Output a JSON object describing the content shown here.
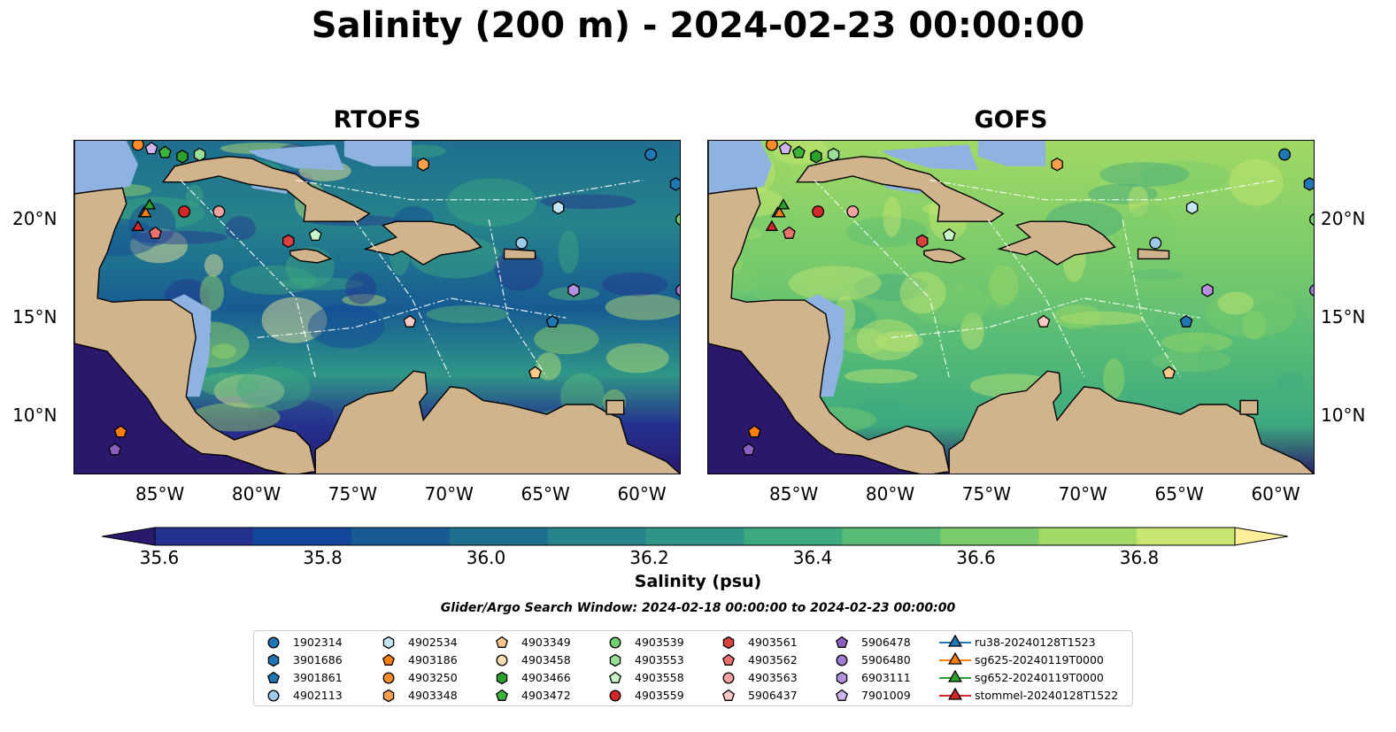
{
  "title": "Salinity (200 m) - 2024-02-23 00:00:00",
  "panels": [
    {
      "title": "RTOFS",
      "model": "rtofs"
    },
    {
      "title": "GOFS",
      "model": "gofs"
    }
  ],
  "map": {
    "lon_range": [
      -89.5,
      -58.0
    ],
    "lat_range": [
      7.0,
      24.0
    ],
    "x_ticks": [
      "85°W",
      "80°W",
      "75°W",
      "70°W",
      "65°W",
      "60°W"
    ],
    "x_tick_values": [
      -85,
      -80,
      -75,
      -70,
      -65,
      -60
    ],
    "y_ticks": [
      "20°N",
      "15°N",
      "10°N"
    ],
    "y_tick_values": [
      20,
      15,
      10
    ],
    "colors": {
      "land": "#d2b48c",
      "shelf": "#8fb3e0"
    }
  },
  "colorbar": {
    "label": "Salinity (psu)",
    "ticks": [
      "35.6",
      "35.8",
      "36.0",
      "36.2",
      "36.4",
      "36.6",
      "36.8"
    ],
    "tick_values": [
      35.6,
      35.8,
      36.0,
      36.2,
      36.4,
      36.6,
      36.8
    ],
    "range": [
      35.6,
      36.9
    ],
    "extend": "both",
    "colors": [
      "#2a186c",
      "#25318f",
      "#12469a",
      "#165b93",
      "#1e6f8e",
      "#26838b",
      "#2f9687",
      "#3da97f",
      "#58bc76",
      "#7acb6b",
      "#a0d964",
      "#c7e672",
      "#fdef9a"
    ]
  },
  "search_window": "Glider/Argo Search Window: 2024-02-18 00:00:00 to 2024-02-23 00:00:00",
  "legend": {
    "items": [
      {
        "label": "1902314",
        "marker": "circle",
        "color": "#1f77b4"
      },
      {
        "label": "3901686",
        "marker": "hexagon",
        "color": "#1f77b4"
      },
      {
        "label": "3901861",
        "marker": "pentagon",
        "color": "#1f77b4"
      },
      {
        "label": "4902113",
        "marker": "circle",
        "color": "#9ecae9"
      },
      {
        "label": "4902534",
        "marker": "hexagon",
        "color": "#c6e6f5"
      },
      {
        "label": "4903186",
        "marker": "pentagon",
        "color": "#ff7f0e"
      },
      {
        "label": "4903250",
        "marker": "circle",
        "color": "#ff8c29"
      },
      {
        "label": "4903348",
        "marker": "hexagon",
        "color": "#ff9f4a"
      },
      {
        "label": "4903349",
        "marker": "pentagon",
        "color": "#ffc88a"
      },
      {
        "label": "4903458",
        "marker": "circle",
        "color": "#ffdcb4"
      },
      {
        "label": "4903466",
        "marker": "hexagon",
        "color": "#2ca02c"
      },
      {
        "label": "4903472",
        "marker": "pentagon",
        "color": "#3cb43c"
      },
      {
        "label": "4903539",
        "marker": "circle",
        "color": "#6fcf6f"
      },
      {
        "label": "4903553",
        "marker": "hexagon",
        "color": "#98e098"
      },
      {
        "label": "4903558",
        "marker": "pentagon",
        "color": "#c8f5c8"
      },
      {
        "label": "4903559",
        "marker": "circle",
        "color": "#d62728"
      },
      {
        "label": "4903561",
        "marker": "hexagon",
        "color": "#d9413f"
      },
      {
        "label": "4903562",
        "marker": "pentagon",
        "color": "#e8706e"
      },
      {
        "label": "4903563",
        "marker": "circle",
        "color": "#f4a29f"
      },
      {
        "label": "5906437",
        "marker": "pentagon",
        "color": "#fbc8c4"
      },
      {
        "label": "5906478",
        "marker": "pentagon",
        "color": "#8c5fbf"
      },
      {
        "label": "5906480",
        "marker": "circle",
        "color": "#a07ad4"
      },
      {
        "label": "6903111",
        "marker": "hexagon",
        "color": "#b591df"
      },
      {
        "label": "7901009",
        "marker": "pentagon",
        "color": "#cdb5ee"
      },
      {
        "label": "ru38-20240128T1523",
        "marker": "triangle-line",
        "color": "#1f77b4"
      },
      {
        "label": "sg625-20240119T0000",
        "marker": "triangle-line",
        "color": "#ff7f0e"
      },
      {
        "label": "sg652-20240119T0000",
        "marker": "triangle-line",
        "color": "#2ca02c"
      },
      {
        "label": "stommel-20240128T1522",
        "marker": "triangle-line",
        "color": "#d62728"
      }
    ]
  },
  "floats": [
    {
      "label": "1902314",
      "lon": -59.6,
      "lat": 23.3,
      "marker": "circle",
      "color": "#1f77b4"
    },
    {
      "label": "3901686",
      "lon": -58.3,
      "lat": 21.8,
      "marker": "hexagon",
      "color": "#1f77b4"
    },
    {
      "label": "3901861",
      "lon": -64.7,
      "lat": 14.8,
      "marker": "pentagon",
      "color": "#1f77b4"
    },
    {
      "label": "4902113",
      "lon": -66.3,
      "lat": 18.8,
      "marker": "circle",
      "color": "#9ecae9"
    },
    {
      "label": "4902534",
      "lon": -64.4,
      "lat": 20.6,
      "marker": "hexagon",
      "color": "#c6e6f5"
    },
    {
      "label": "4903186",
      "lon": -87.1,
      "lat": 9.2,
      "marker": "pentagon",
      "color": "#ff7f0e"
    },
    {
      "label": "4903250",
      "lon": -86.2,
      "lat": 23.8,
      "marker": "circle",
      "color": "#ff8c29"
    },
    {
      "label": "4903348",
      "lon": -71.4,
      "lat": 22.8,
      "marker": "hexagon",
      "color": "#ff9f4a"
    },
    {
      "label": "4903349",
      "lon": -65.6,
      "lat": 12.2,
      "marker": "pentagon",
      "color": "#ffc88a"
    },
    {
      "label": "4903458",
      "lon": -58.0,
      "lat": 20.0,
      "marker": "circle",
      "color": "#ffdcb4"
    },
    {
      "label": "4903466",
      "lon": -83.9,
      "lat": 23.2,
      "marker": "hexagon",
      "color": "#2ca02c"
    },
    {
      "label": "4903472",
      "lon": -84.8,
      "lat": 23.4,
      "marker": "pentagon",
      "color": "#3cb43c"
    },
    {
      "label": "4903539",
      "lon": -58.0,
      "lat": 20.0,
      "marker": "circle",
      "color": "#6fcf6f"
    },
    {
      "label": "4903553",
      "lon": -83.0,
      "lat": 23.3,
      "marker": "hexagon",
      "color": "#98e098"
    },
    {
      "label": "4903558",
      "lon": -77.0,
      "lat": 19.2,
      "marker": "pentagon",
      "color": "#c8f5c8"
    },
    {
      "label": "4903559",
      "lon": -83.8,
      "lat": 20.4,
      "marker": "circle",
      "color": "#d62728"
    },
    {
      "label": "4903561",
      "lon": -78.4,
      "lat": 18.9,
      "marker": "hexagon",
      "color": "#d9413f"
    },
    {
      "label": "4903562",
      "lon": -85.3,
      "lat": 19.3,
      "marker": "pentagon",
      "color": "#e8706e"
    },
    {
      "label": "4903563",
      "lon": -82.0,
      "lat": 20.4,
      "marker": "circle",
      "color": "#f4a29f"
    },
    {
      "label": "5906437",
      "lon": -72.1,
      "lat": 14.8,
      "marker": "pentagon",
      "color": "#fbc8c4"
    },
    {
      "label": "5906478",
      "lon": -87.4,
      "lat": 8.3,
      "marker": "pentagon",
      "color": "#8c5fbf"
    },
    {
      "label": "5906480",
      "lon": -58.0,
      "lat": 16.4,
      "marker": "circle",
      "color": "#a07ad4"
    },
    {
      "label": "6903111",
      "lon": -63.6,
      "lat": 16.4,
      "marker": "hexagon",
      "color": "#b591df"
    },
    {
      "label": "7901009",
      "lon": -85.5,
      "lat": 23.6,
      "marker": "pentagon",
      "color": "#cdb5ee"
    },
    {
      "label": "ru38-20240128T1523",
      "lon": -85.9,
      "lat": 20.3,
      "marker": "triangle",
      "color": "#1f77b4"
    },
    {
      "label": "sg625-20240119T0000",
      "lon": -85.8,
      "lat": 20.3,
      "marker": "triangle",
      "color": "#ff7f0e"
    },
    {
      "label": "sg652-20240119T0000",
      "lon": -85.6,
      "lat": 20.7,
      "marker": "triangle",
      "color": "#2ca02c"
    },
    {
      "label": "stommel-20240128T1522",
      "lon": -86.2,
      "lat": 19.6,
      "marker": "triangle",
      "color": "#d62728"
    }
  ]
}
